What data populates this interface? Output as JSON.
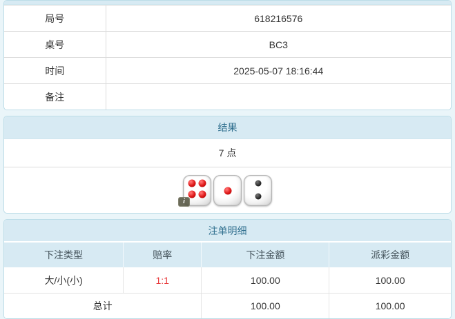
{
  "info_table": {
    "rows": [
      {
        "label": "局号",
        "value": "618216576"
      },
      {
        "label": "桌号",
        "value": "BC3"
      },
      {
        "label": "时间",
        "value": "2025-05-07 18:16:44"
      },
      {
        "label": "备注",
        "value": ""
      }
    ]
  },
  "result_panel": {
    "title": "结果",
    "points": "7 点",
    "dice": [
      {
        "value": 4,
        "color": "red",
        "badge": "i"
      },
      {
        "value": 1,
        "color": "red"
      },
      {
        "value": 2,
        "color": "black"
      }
    ]
  },
  "bets_panel": {
    "title": "注单明细",
    "columns": [
      "下注类型",
      "赔率",
      "下注金额",
      "派彩金额"
    ],
    "rows": [
      {
        "bet_type": "大/小(小)",
        "odds": "1:1",
        "bet_amount": "100.00",
        "payout_amount": "100.00"
      }
    ],
    "total": {
      "label": "总计",
      "bet_amount": "100.00",
      "payout_amount": "100.00"
    }
  },
  "colors": {
    "page_background": "#eaf5f9",
    "panel_header_background": "#d7eaf3",
    "panel_header_text": "#31708f",
    "panel_border": "#bcdde8",
    "body_text": "#333333",
    "odds_red": "#e8393b",
    "red_pip": "#dd1717",
    "black_pip": "#1c1c1c"
  }
}
